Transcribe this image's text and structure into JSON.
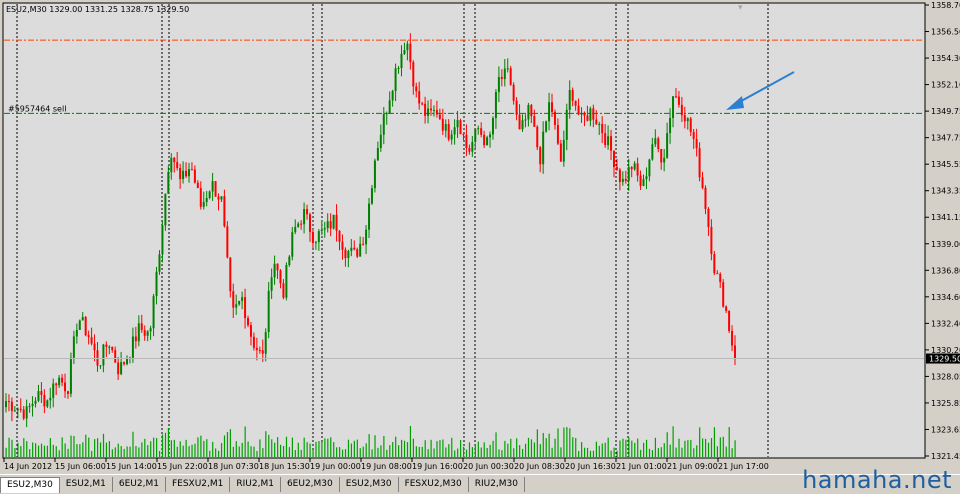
{
  "chart_data": {
    "type": "candlestick",
    "symbol_info": "ESU2,M30  1329.00 1331.25 1328.75 1329.50",
    "y_ticks": [
      "1358.70",
      "1356.50",
      "1354.30",
      "1352.10",
      "1349.75",
      "1347.75",
      "1345.55",
      "1343.35",
      "1341.15",
      "1339.00",
      "1336.80",
      "1334.60",
      "1332.40",
      "1330.20",
      "1328.05",
      "1325.85",
      "1323.65",
      "1321.45"
    ],
    "x_ticks": [
      "14 Jun 2012",
      "15 Jun 06:00",
      "15 Jun 14:00",
      "15 Jun 22:00",
      "18 Jun 07:30",
      "18 Jun 15:30",
      "19 Jun 00:00",
      "19 Jun 08:00",
      "19 Jun 16:00",
      "20 Jun 00:30",
      "20 Jun 08:30",
      "20 Jun 16:30",
      "21 Jun 01:00",
      "21 Jun 09:00",
      "21 Jun 17:00"
    ],
    "ylim": [
      1321.45,
      1358.7
    ],
    "current_price": "1329.50",
    "order_line_label": "#5957464 sell",
    "order_line_price": 1349.75,
    "stop_line_price": 1355.8,
    "colors": {
      "bull": "#008000",
      "bear": "#ff0000",
      "volume": "#00a000",
      "order_line": "#008000",
      "stop_line": "#ff4000",
      "arrow": "#2d7fd0"
    },
    "waypoints": [
      1326,
      1325.5,
      1325,
      1326.5,
      1326,
      1328,
      1327,
      1333,
      1331.5,
      1329,
      1331,
      1328.5,
      1330,
      1332,
      1331.5,
      1339,
      1347,
      1344,
      1345.5,
      1342,
      1344,
      1342.5,
      1333,
      1334.5,
      1331,
      1329.5,
      1338,
      1335,
      1340,
      1341.5,
      1339.5,
      1340,
      1341,
      1338.5,
      1338,
      1340,
      1346.5,
      1350,
      1353.5,
      1356,
      1351,
      1349.5,
      1350,
      1348,
      1349.5,
      1346.5,
      1348.5,
      1347,
      1352.5,
      1353,
      1348,
      1350,
      1346,
      1351,
      1345.5,
      1352,
      1349,
      1350,
      1348.5,
      1346.5,
      1344,
      1345.5,
      1343.5,
      1347.5,
      1346,
      1351.5,
      1350,
      1347.5,
      1343,
      1337,
      1334,
      1329.5
    ]
  },
  "tabs": [
    "ESU2,M30",
    "ESU2,M1",
    "6EU2,M1",
    "FESXU2,M1",
    "RIU2,M1",
    "6EU2,M30",
    "ESU2,M30",
    "FESXU2,M30",
    "RIU2,M30"
  ],
  "watermark": "hamaha.net"
}
